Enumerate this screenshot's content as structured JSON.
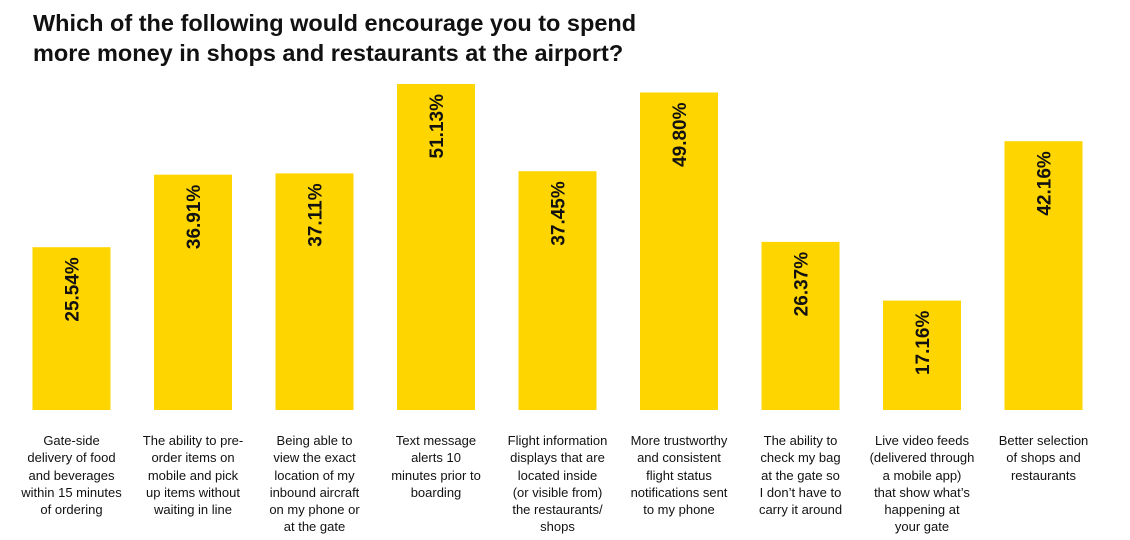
{
  "chart_data": {
    "type": "bar",
    "title": "Which of the following would encourage you to spend\nmore money in shops and restaurants at the airport?",
    "categories": [
      "Gate-side\ndelivery of food\nand beverages\nwithin 15 minutes\nof ordering",
      "The ability to pre-\norder items on\nmobile and pick\nup items without\nwaiting in line",
      "Being able to\nview the exact\nlocation of my\ninbound aircraft\non my phone or\nat the gate",
      "Text message\nalerts 10\nminutes prior to\nboarding",
      "Flight information\ndisplays that are\nlocated inside\n(or visible from)\nthe restaurants/\nshops",
      "More trustworthy\nand consistent\nflight status\nnotifications sent\nto my phone",
      "The ability to\ncheck my bag\nat the gate so\nI don’t have to\ncarry it around",
      "Live video feeds\n(delivered through\na mobile app)\nthat show what’s\nhappening at\nyour gate",
      "Better selection\nof shops and\nrestaurants"
    ],
    "values": [
      25.54,
      36.91,
      37.11,
      51.13,
      37.45,
      49.8,
      26.37,
      17.16,
      42.16
    ],
    "data_labels": [
      "25.54%",
      "36.91%",
      "37.11%",
      "51.13%",
      "37.45%",
      "49.80%",
      "26.37%",
      "17.16%",
      "42.16%"
    ],
    "ylim": [
      0,
      51.13
    ],
    "grid": false,
    "legend": "none",
    "bar_color": "#FFD500",
    "xlabel": "",
    "ylabel": ""
  }
}
